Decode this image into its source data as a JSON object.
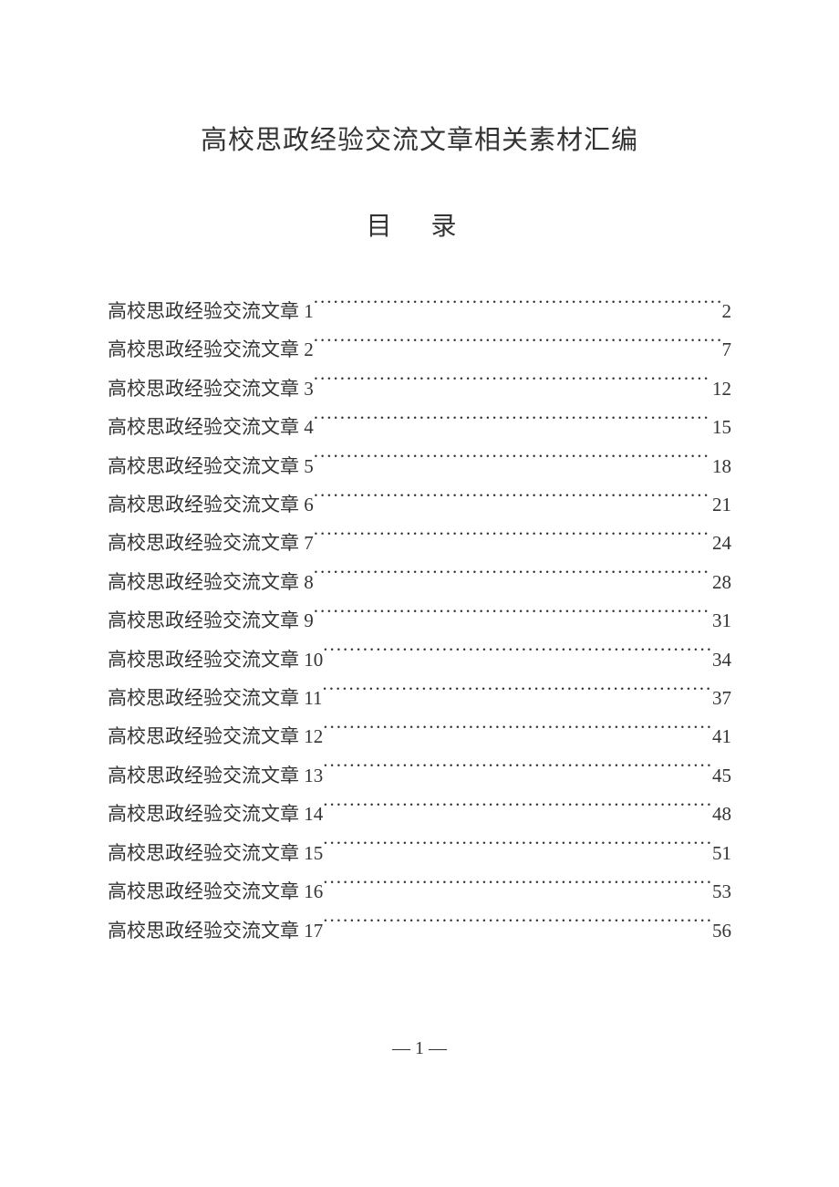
{
  "document": {
    "title": "高校思政经验交流文章相关素材汇编",
    "toc_heading": "目 录",
    "page_number": "— 1 —",
    "background_color": "#ffffff",
    "text_color": "#333333",
    "title_fontsize": 29,
    "toc_heading_fontsize": 28,
    "entry_fontsize": 21,
    "line_height": 2.02
  },
  "toc": {
    "entries": [
      {
        "label": "高校思政经验交流文章 1",
        "page": "2"
      },
      {
        "label": "高校思政经验交流文章 2",
        "page": "7"
      },
      {
        "label": "高校思政经验交流文章 3",
        "page": "12"
      },
      {
        "label": "高校思政经验交流文章 4",
        "page": "15"
      },
      {
        "label": "高校思政经验交流文章 5",
        "page": "18"
      },
      {
        "label": "高校思政经验交流文章 6",
        "page": "21"
      },
      {
        "label": "高校思政经验交流文章 7",
        "page": "24"
      },
      {
        "label": "高校思政经验交流文章 8",
        "page": "28"
      },
      {
        "label": "高校思政经验交流文章 9",
        "page": "31"
      },
      {
        "label": "高校思政经验交流文章 10",
        "page": "34"
      },
      {
        "label": "高校思政经验交流文章 11",
        "page": "37"
      },
      {
        "label": "高校思政经验交流文章 12",
        "page": "41"
      },
      {
        "label": "高校思政经验交流文章 13",
        "page": "45"
      },
      {
        "label": "高校思政经验交流文章 14",
        "page": "48"
      },
      {
        "label": "高校思政经验交流文章 15",
        "page": "51"
      },
      {
        "label": "高校思政经验交流文章 16",
        "page": "53"
      },
      {
        "label": "高校思政经验交流文章 17",
        "page": "56"
      }
    ]
  }
}
